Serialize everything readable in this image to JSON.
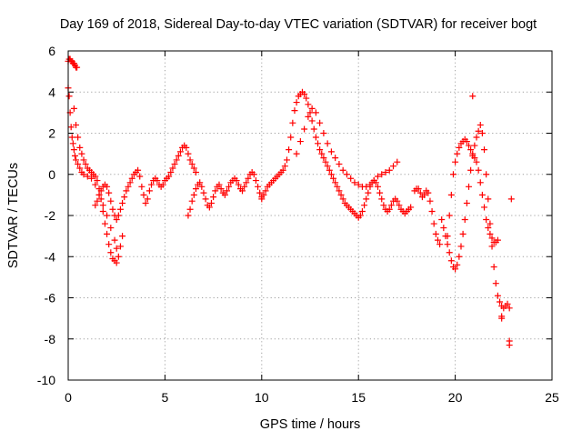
{
  "chart_data": {
    "type": "scatter",
    "title": "Day 169 of 2018, Sidereal Day-to-day VTEC variation (SDTVAR) for receiver bogt",
    "xlabel": "GPS time / hours",
    "ylabel": "SDTVAR / TECUs",
    "xlim": [
      0,
      25
    ],
    "ylim": [
      -10,
      6
    ],
    "xticks": [
      0,
      5,
      10,
      15,
      20,
      25
    ],
    "yticks": [
      -10,
      -8,
      -6,
      -4,
      -2,
      0,
      2,
      4,
      6
    ],
    "xtick_labels": [
      "0",
      "5",
      "10",
      "15",
      "20",
      "25"
    ],
    "ytick_labels": [
      "-10",
      "-8",
      "-6",
      "-4",
      "-2",
      "0",
      "2",
      "4",
      "6"
    ],
    "grid": true,
    "marker": "+",
    "color": "#ff0000",
    "series": [
      {
        "name": "SDTVAR receiver bogt",
        "x": [
          0.0,
          0.05,
          0.1,
          0.15,
          0.2,
          0.25,
          0.3,
          0.35,
          0.4,
          0.45,
          0.0,
          0.05,
          0.1,
          0.15,
          0.2,
          0.25,
          0.3,
          0.35,
          0.4,
          0.5,
          0.6,
          0.7,
          0.8,
          1.0,
          1.2,
          1.4,
          1.6,
          1.8,
          2.0,
          2.2,
          2.4,
          2.5,
          0.3,
          0.4,
          0.5,
          0.6,
          0.7,
          0.8,
          0.9,
          1.0,
          1.1,
          1.2,
          1.3,
          1.4,
          1.5,
          1.6,
          1.7,
          1.8,
          1.9,
          2.0,
          2.1,
          2.2,
          2.3,
          2.4,
          2.5,
          2.6,
          2.7,
          2.8,
          1.4,
          1.5,
          1.6,
          1.7,
          1.8,
          1.9,
          2.0,
          2.1,
          2.2,
          2.3,
          2.4,
          2.5,
          2.6,
          2.7,
          2.8,
          2.9,
          3.0,
          3.1,
          3.2,
          3.3,
          3.4,
          3.5,
          3.6,
          3.7,
          3.8,
          3.9,
          4.0,
          4.1,
          4.2,
          4.3,
          4.4,
          4.5,
          4.6,
          4.7,
          4.8,
          4.9,
          5.0,
          5.1,
          5.2,
          5.3,
          5.4,
          5.5,
          5.6,
          5.7,
          5.8,
          5.9,
          6.0,
          6.1,
          6.2,
          6.3,
          6.4,
          6.5,
          6.6,
          6.2,
          6.3,
          6.4,
          6.5,
          6.6,
          6.7,
          6.8,
          6.9,
          7.0,
          7.1,
          7.2,
          7.3,
          7.4,
          7.5,
          7.6,
          7.7,
          7.8,
          7.9,
          8.0,
          8.1,
          8.2,
          8.3,
          8.4,
          8.5,
          8.6,
          8.7,
          8.8,
          8.9,
          9.0,
          9.1,
          9.2,
          9.3,
          9.4,
          9.5,
          9.6,
          9.7,
          9.8,
          9.9,
          10.0,
          10.0,
          10.1,
          10.2,
          10.3,
          10.4,
          10.5,
          10.6,
          10.7,
          10.8,
          10.9,
          11.0,
          11.1,
          11.2,
          11.3,
          11.4,
          11.5,
          11.6,
          11.7,
          11.8,
          11.9,
          12.0,
          12.1,
          12.2,
          12.3,
          12.4,
          12.5,
          12.6,
          12.7,
          12.8,
          12.9,
          13.0,
          13.1,
          13.2,
          13.3,
          13.4,
          13.5,
          13.6,
          13.7,
          13.8,
          13.9,
          14.0,
          14.1,
          14.2,
          14.3,
          14.4,
          14.5,
          14.6,
          14.7,
          14.8,
          14.9,
          15.0,
          15.1,
          15.2,
          15.3,
          15.4,
          15.5,
          15.6,
          15.7,
          15.8,
          15.9,
          16.0,
          16.1,
          16.2,
          16.3,
          16.4,
          16.5,
          16.6,
          16.7,
          16.8,
          16.9,
          17.0,
          17.1,
          17.2,
          17.3,
          17.4,
          17.5,
          17.6,
          17.7,
          11.8,
          12.0,
          12.2,
          12.4,
          12.6,
          12.8,
          13.0,
          13.2,
          13.4,
          13.6,
          13.8,
          14.0,
          14.2,
          14.4,
          14.6,
          14.8,
          15.0,
          15.2,
          15.4,
          15.6,
          15.8,
          16.0,
          16.2,
          16.4,
          16.6,
          16.8,
          17.0,
          17.9,
          18.0,
          18.1,
          18.2,
          18.3,
          18.4,
          18.5,
          18.6,
          18.7,
          18.8,
          18.9,
          19.0,
          19.1,
          19.2,
          19.3,
          19.4,
          19.5,
          19.6,
          19.7,
          19.8,
          19.9,
          20.0,
          20.1,
          20.2,
          20.3,
          20.4,
          20.5,
          20.6,
          20.7,
          20.8,
          20.9,
          21.0,
          21.1,
          21.2,
          21.3,
          21.4,
          21.5,
          21.6,
          21.7,
          21.8,
          21.9,
          22.0,
          22.1,
          22.2,
          22.3,
          22.4,
          22.5,
          22.6,
          22.7,
          22.8,
          19.6,
          19.7,
          19.8,
          19.9,
          20.0,
          20.1,
          20.2,
          20.3,
          20.4,
          20.5,
          20.6,
          20.7,
          20.8,
          20.9,
          21.0,
          21.1,
          21.2,
          21.3,
          21.4,
          21.5,
          21.6,
          21.7,
          21.8,
          21.9,
          22.0,
          22.1,
          22.2,
          20.9,
          22.4,
          22.4,
          22.8,
          22.8,
          22.9
        ],
        "y": [
          5.5,
          5.6,
          5.6,
          5.5,
          5.5,
          5.4,
          5.4,
          5.3,
          5.2,
          5.2,
          4.2,
          3.8,
          3.0,
          2.3,
          1.8,
          1.5,
          1.2,
          0.9,
          0.7,
          0.5,
          0.3,
          0.1,
          0.0,
          -0.1,
          -0.2,
          -0.5,
          -1.0,
          -1.5,
          -2.0,
          -2.6,
          -3.2,
          -3.6,
          3.2,
          2.4,
          1.8,
          1.3,
          1.0,
          0.7,
          0.5,
          0.3,
          0.2,
          0.1,
          0.0,
          -0.1,
          -0.3,
          -0.7,
          -1.2,
          -1.8,
          -2.4,
          -2.9,
          -3.4,
          -3.8,
          -4.1,
          -4.2,
          -4.3,
          -4.0,
          -3.5,
          -3.0,
          -1.5,
          -1.3,
          -1.0,
          -0.8,
          -0.6,
          -0.5,
          -0.6,
          -0.9,
          -1.3,
          -1.7,
          -2.0,
          -2.2,
          -2.0,
          -1.7,
          -1.4,
          -1.1,
          -0.8,
          -0.6,
          -0.4,
          -0.2,
          0.0,
          0.1,
          0.2,
          -0.1,
          -0.6,
          -1.0,
          -1.4,
          -1.2,
          -0.8,
          -0.5,
          -0.3,
          -0.2,
          -0.3,
          -0.5,
          -0.6,
          -0.5,
          -0.3,
          -0.2,
          -0.1,
          0.1,
          0.3,
          0.5,
          0.7,
          0.9,
          1.1,
          1.3,
          1.4,
          1.3,
          1.0,
          0.7,
          0.5,
          0.3,
          0.1,
          -2.0,
          -1.7,
          -1.3,
          -1.0,
          -0.7,
          -0.5,
          -0.4,
          -0.6,
          -0.9,
          -1.2,
          -1.5,
          -1.6,
          -1.4,
          -1.1,
          -0.8,
          -0.6,
          -0.5,
          -0.7,
          -0.9,
          -1.0,
          -0.8,
          -0.6,
          -0.4,
          -0.3,
          -0.2,
          -0.3,
          -0.5,
          -0.7,
          -0.8,
          -0.6,
          -0.4,
          -0.2,
          0.0,
          0.1,
          0.0,
          -0.3,
          -0.6,
          -0.9,
          -1.1,
          -1.2,
          -1.0,
          -0.8,
          -0.6,
          -0.5,
          -0.4,
          -0.3,
          -0.2,
          -0.1,
          0.0,
          0.1,
          0.2,
          0.4,
          0.7,
          1.2,
          1.8,
          2.5,
          3.1,
          3.5,
          3.8,
          3.9,
          4.0,
          3.9,
          3.7,
          3.4,
          3.0,
          2.6,
          2.2,
          1.8,
          1.5,
          1.2,
          1.0,
          0.8,
          0.6,
          0.4,
          0.2,
          0.0,
          -0.2,
          -0.4,
          -0.6,
          -0.8,
          -1.0,
          -1.2,
          -1.4,
          -1.5,
          -1.6,
          -1.7,
          -1.8,
          -1.9,
          -2.0,
          -2.1,
          -2.0,
          -1.8,
          -1.5,
          -1.2,
          -0.9,
          -0.6,
          -0.4,
          -0.3,
          -0.4,
          -0.6,
          -0.9,
          -1.2,
          -1.5,
          -1.7,
          -1.8,
          -1.7,
          -1.5,
          -1.3,
          -1.2,
          -1.3,
          -1.5,
          -1.7,
          -1.8,
          -1.9,
          -1.8,
          -1.7,
          -1.6,
          1.0,
          1.6,
          2.2,
          2.8,
          3.2,
          3.0,
          2.5,
          2.0,
          1.5,
          1.1,
          0.8,
          0.5,
          0.2,
          0.0,
          -0.2,
          -0.4,
          -0.5,
          -0.6,
          -0.6,
          -0.5,
          -0.3,
          -0.1,
          0.0,
          0.1,
          0.2,
          0.4,
          0.6,
          -0.8,
          -0.7,
          -0.7,
          -0.9,
          -1.1,
          -1.0,
          -0.8,
          -0.9,
          -1.3,
          -1.8,
          -2.4,
          -2.9,
          -3.2,
          -3.4,
          -2.2,
          -2.6,
          -3.0,
          -3.4,
          -3.8,
          -4.2,
          -4.5,
          -4.6,
          -4.4,
          -4.0,
          -3.5,
          -2.9,
          -2.2,
          -1.4,
          -0.6,
          0.2,
          0.9,
          1.4,
          1.8,
          2.1,
          2.4,
          2.0,
          1.2,
          0.0,
          -1.2,
          -2.4,
          -3.5,
          -4.5,
          -5.3,
          -5.9,
          -6.2,
          -6.4,
          -6.5,
          -6.4,
          -6.3,
          -6.5,
          -3.0,
          -2.0,
          -1.0,
          0.0,
          0.6,
          1.0,
          1.3,
          1.5,
          1.6,
          1.7,
          1.6,
          1.4,
          1.2,
          1.0,
          0.8,
          0.6,
          0.2,
          -0.4,
          -1.0,
          -1.6,
          -2.2,
          -2.6,
          -2.9,
          -3.1,
          -3.3,
          -3.3,
          -3.2,
          3.8,
          -6.9,
          -7.0,
          -8.1,
          -8.3,
          -1.2
        ]
      }
    ]
  }
}
